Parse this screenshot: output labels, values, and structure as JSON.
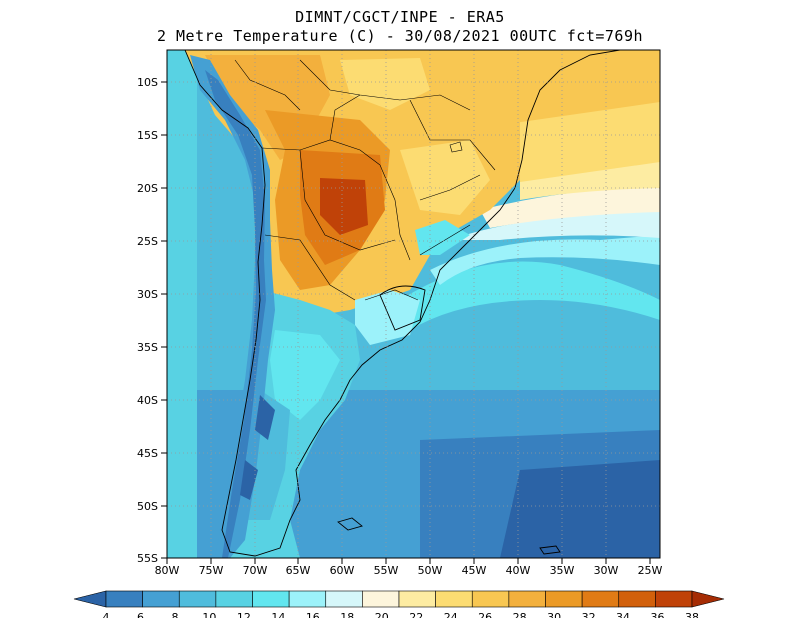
{
  "title": {
    "line1": "DIMNT/CGCT/INPE -  ERA5",
    "line2": "2 Metre Temperature (C) -  30/08/2021 00UTC fct=769h"
  },
  "axes": {
    "lat_labels": [
      "10S",
      "15S",
      "20S",
      "25S",
      "30S",
      "35S",
      "40S",
      "45S",
      "50S",
      "55S"
    ],
    "lon_labels": [
      "80W",
      "75W",
      "70W",
      "65W",
      "60W",
      "55W",
      "50W",
      "45W",
      "40W",
      "35W",
      "30W",
      "25W"
    ]
  },
  "colorbar": {
    "labels": [
      "4",
      "6",
      "8",
      "10",
      "12",
      "14",
      "16",
      "18",
      "20",
      "22",
      "24",
      "26",
      "28",
      "30",
      "32",
      "34",
      "36",
      "38"
    ],
    "colors": [
      "#2b63a6",
      "#3880bf",
      "#45a0d3",
      "#4fbcdc",
      "#58d2e3",
      "#62e6ef",
      "#9cf2fa",
      "#d6f7fa",
      "#fdf5dc",
      "#fdeca2",
      "#fcdc72",
      "#f8c752",
      "#f3b03d",
      "#eb9a26",
      "#e07b15",
      "#d2600b",
      "#c04208",
      "#a52c04"
    ]
  }
}
